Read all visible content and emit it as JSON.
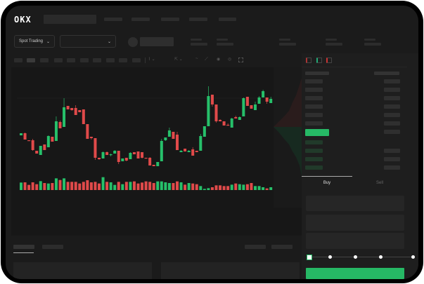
{
  "header": {
    "logo": "OKX"
  },
  "market_selector": {
    "label": "Spot Trading",
    "pair_value": ""
  },
  "order_form": {
    "tabs": [
      {
        "label": "Buy",
        "active": true
      },
      {
        "label": "Sell",
        "active": false
      }
    ],
    "leverage_slider": {
      "value": 0,
      "stops": 5
    }
  },
  "colors": {
    "up": "#26c06a",
    "down": "#e04a4a",
    "background": "#1b1b1b",
    "accent": "#26b865"
  },
  "icons": [
    "chevron-down-icon",
    "orderbook-both-icon",
    "orderbook-bids-icon",
    "orderbook-asks-icon",
    "camera-icon",
    "settings-icon",
    "fullscreen-icon"
  ],
  "chart_data": {
    "type": "candlestick",
    "candles": [
      [
        55,
        58,
        58,
        55
      ],
      [
        58,
        49,
        59,
        49
      ],
      [
        48,
        47,
        48,
        47
      ],
      [
        48,
        34,
        50,
        33
      ],
      [
        33,
        29,
        33,
        29
      ],
      [
        27,
        40,
        40,
        27
      ],
      [
        42,
        34,
        42,
        34
      ],
      [
        38,
        54,
        55,
        38
      ],
      [
        53,
        46,
        53,
        46
      ],
      [
        47,
        75,
        82,
        47
      ],
      [
        74,
        65,
        76,
        65
      ],
      [
        67,
        95,
        108,
        67
      ],
      [
        97,
        92,
        97,
        92
      ],
      [
        94,
        91,
        94,
        90
      ],
      [
        94,
        84,
        98,
        84
      ],
      [
        91,
        88,
        91,
        88
      ],
      [
        92,
        71,
        92,
        71
      ],
      [
        71,
        50,
        71,
        50
      ],
      [
        53,
        51,
        53,
        49
      ],
      [
        51,
        23,
        51,
        20
      ],
      [
        23,
        21,
        23,
        20
      ],
      [
        22,
        31,
        32,
        22
      ],
      [
        31,
        27,
        32,
        27
      ],
      [
        27,
        28,
        29,
        25
      ],
      [
        29,
        33,
        34,
        29
      ],
      [
        33,
        17,
        33,
        14
      ],
      [
        18,
        22,
        22,
        18
      ],
      [
        23,
        19,
        23,
        18
      ],
      [
        21,
        30,
        31,
        21
      ],
      [
        31,
        28,
        31,
        28
      ],
      [
        32,
        22,
        32,
        22
      ],
      [
        31,
        23,
        31,
        22
      ],
      [
        23,
        22,
        23,
        22
      ],
      [
        23,
        12,
        24,
        12
      ],
      [
        13,
        11,
        13,
        11
      ],
      [
        11,
        17,
        17,
        11
      ],
      [
        18,
        47,
        50,
        18
      ],
      [
        48,
        52,
        52,
        47
      ],
      [
        53,
        62,
        66,
        53
      ],
      [
        60,
        50,
        60,
        50
      ],
      [
        56,
        34,
        60,
        34
      ],
      [
        31,
        33,
        34,
        31
      ],
      [
        36,
        32,
        36,
        32
      ],
      [
        31,
        33,
        34,
        31
      ],
      [
        35,
        26,
        38,
        26
      ],
      [
        33,
        31,
        33,
        31
      ],
      [
        33,
        54,
        57,
        33
      ],
      [
        53,
        68,
        68,
        53
      ],
      [
        68,
        111,
        125,
        68
      ],
      [
        113,
        99,
        113,
        96
      ],
      [
        99,
        75,
        99,
        73
      ],
      [
        77,
        75,
        78,
        75
      ],
      [
        75,
        69,
        75,
        69
      ],
      [
        70,
        69,
        72,
        69
      ],
      [
        66,
        79,
        80,
        66
      ],
      [
        81,
        79,
        83,
        79
      ],
      [
        77,
        81,
        82,
        77
      ],
      [
        82,
        108,
        109,
        82
      ],
      [
        110,
        97,
        110,
        97
      ],
      [
        98,
        93,
        98,
        93
      ],
      [
        91,
        99,
        103,
        91
      ],
      [
        100,
        109,
        111,
        100
      ],
      [
        109,
        118,
        120,
        109
      ],
      [
        109,
        103,
        109,
        100
      ],
      [
        101,
        107,
        110,
        101
      ]
    ],
    "candle_format": [
      "open",
      "close",
      "high",
      "low"
    ],
    "volume": [
      32,
      33,
      22,
      33,
      25,
      38,
      30,
      28,
      30,
      50,
      43,
      50,
      35,
      35,
      35,
      28,
      35,
      42,
      33,
      35,
      28,
      55,
      35,
      33,
      22,
      35,
      25,
      35,
      35,
      37,
      28,
      32,
      37,
      35,
      30,
      37,
      37,
      33,
      30,
      30,
      37,
      33,
      23,
      30,
      28,
      25,
      17,
      5,
      8,
      12,
      20,
      20,
      17,
      17,
      23,
      28,
      25,
      23,
      25,
      30,
      17,
      17,
      12,
      7,
      12
    ],
    "grid": false
  }
}
